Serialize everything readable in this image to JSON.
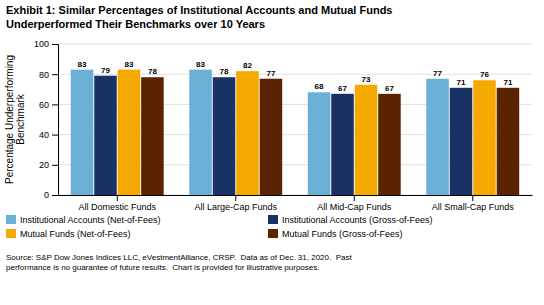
{
  "chart_data": {
    "type": "bar",
    "title": "Exhibit 1: Similar Percentages of Institutional Accounts and Mutual Funds\nUnderperformed Their Benchmarks over 10 Years",
    "y_label": "Percentage Underperforming\nBenchmark",
    "annotations": [
      "Source: S&P Dow Jones Indices LLC, eVestmentAlliance, CRSP.  Data as of Dec. 31, 2020.  Past\nperformance is no guarantee of future results.  Chart is provided for illustrative purposes."
    ],
    "categories": [
      "All Domestic Funds",
      "All Large-Cap Funds",
      "All Mid-Cap Funds",
      "All Small-Cap Funds"
    ],
    "series": [
      {
        "name": "Institutional Accounts (Net-of-Fees)",
        "color": "#6aafd6",
        "values": [
          83,
          83,
          68,
          77
        ]
      },
      {
        "name": "Institutional Accounts (Gross-of-Fees)",
        "color": "#1a3263",
        "values": [
          79,
          78,
          67,
          71
        ]
      },
      {
        "name": "Mutual Funds (Net-of-Fees)",
        "color": "#f5a800",
        "values": [
          83,
          82,
          73,
          76
        ]
      },
      {
        "name": "Mutual Funds (Gross-of-Fees)",
        "color": "#5c2300",
        "values": [
          78,
          77,
          67,
          71
        ]
      }
    ],
    "ylim": [
      0,
      100
    ],
    "yticks": [
      0,
      20,
      40,
      60,
      80,
      100
    ],
    "grid": true,
    "legend": "bottom left",
    "data_labels": true
  }
}
